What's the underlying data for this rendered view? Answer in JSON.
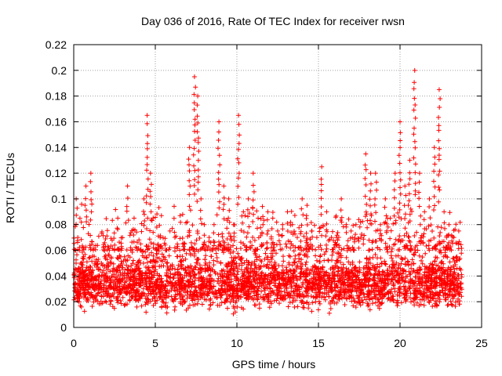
{
  "chart_data": {
    "type": "scatter",
    "title": "Day 036 of 2016, Rate Of TEC Index for receiver rwsn",
    "xlabel": "GPS time / hours",
    "ylabel": "ROTI / TECUs",
    "xlim": [
      0,
      25
    ],
    "ylim": [
      0,
      0.22
    ],
    "x_ticks": [
      "0",
      "5",
      "10",
      "15",
      "20",
      "25"
    ],
    "y_ticks": [
      "0",
      "0.02",
      "0.04",
      "0.06",
      "0.08",
      "0.1",
      "0.12",
      "0.14",
      "0.16",
      "0.18",
      "0.2",
      "0.22"
    ],
    "grid": true,
    "legend": "none",
    "marker": "plus",
    "color": "#ff0000",
    "series": [
      {
        "x": [
          0.05,
          0.15,
          0.25,
          0.35,
          0.45,
          0.6,
          0.75,
          0.9,
          1.05,
          1.2,
          1.35,
          1.5,
          1.7,
          1.9,
          2.1,
          2.3,
          2.5,
          2.7,
          2.9,
          3.1,
          3.3,
          3.5,
          3.7,
          3.9,
          4.1,
          4.3,
          4.5,
          4.7,
          4.9,
          5.1,
          5.3,
          5.5,
          5.7,
          5.9,
          6.2,
          6.5,
          6.8,
          7.1,
          7.4,
          7.6,
          7.8,
          8.0,
          8.3,
          8.6,
          8.9,
          9.2,
          9.5,
          9.8,
          10.1,
          10.4,
          10.7,
          11.0,
          11.3,
          11.6,
          11.9,
          12.2,
          12.5,
          12.8,
          13.1,
          13.4,
          13.7,
          14.0,
          14.3,
          14.6,
          14.9,
          15.2,
          15.5,
          15.8,
          16.1,
          16.4,
          16.7,
          17.0,
          17.3,
          17.6,
          17.9,
          18.2,
          18.5,
          18.8,
          19.1,
          19.4,
          19.7,
          20.0,
          20.3,
          20.6,
          20.9,
          21.2,
          21.5,
          21.8,
          22.1,
          22.4,
          22.7,
          23.0,
          23.3,
          23.6
        ],
        "y": [
          0.04,
          0.1,
          0.07,
          0.06,
          0.05,
          0.055,
          0.11,
          0.045,
          0.12,
          0.06,
          0.05,
          0.045,
          0.05,
          0.055,
          0.045,
          0.05,
          0.06,
          0.085,
          0.06,
          0.055,
          0.11,
          0.06,
          0.085,
          0.06,
          0.065,
          0.1,
          0.165,
          0.12,
          0.065,
          0.06,
          0.07,
          0.055,
          0.05,
          0.075,
          0.07,
          0.06,
          0.065,
          0.14,
          0.195,
          0.18,
          0.1,
          0.08,
          0.07,
          0.08,
          0.16,
          0.11,
          0.1,
          0.08,
          0.165,
          0.09,
          0.1,
          0.12,
          0.085,
          0.08,
          0.09,
          0.085,
          0.075,
          0.08,
          0.09,
          0.08,
          0.07,
          0.1,
          0.095,
          0.075,
          0.07,
          0.125,
          0.09,
          0.07,
          0.07,
          0.1,
          0.08,
          0.075,
          0.08,
          0.07,
          0.135,
          0.12,
          0.12,
          0.08,
          0.1,
          0.085,
          0.12,
          0.16,
          0.11,
          0.13,
          0.2,
          0.12,
          0.09,
          0.1,
          0.14,
          0.185,
          0.09,
          0.08,
          0.07,
          0.075
        ]
      }
    ],
    "dense_band": {
      "x_range": [
        0,
        23.8
      ],
      "y_range": [
        0.005,
        0.075
      ],
      "note_points": 3200
    }
  }
}
